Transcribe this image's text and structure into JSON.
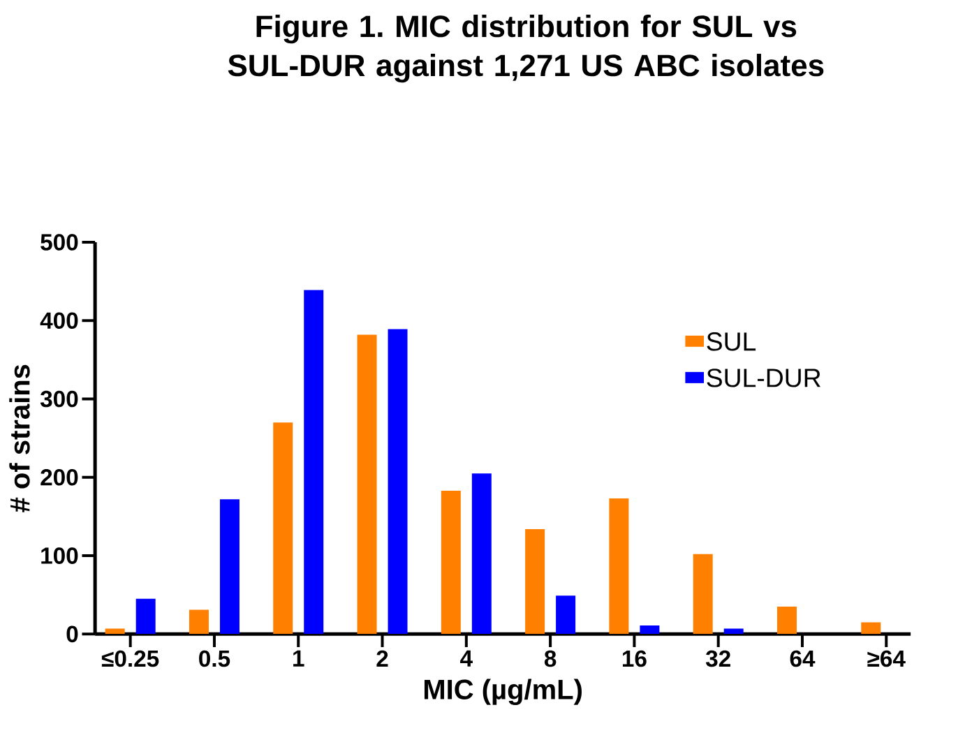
{
  "chart_data": {
    "type": "bar",
    "title": "Figure 1. MIC distribution for SUL vs SUL-DUR against 1,271 US ABC isolates",
    "xlabel": "MIC (µg/mL)",
    "ylabel": "# of strains",
    "categories": [
      "≤0.25",
      "0.5",
      "1",
      "2",
      "4",
      "8",
      "16",
      "32",
      "64",
      "≥64"
    ],
    "series": [
      {
        "name": "SUL",
        "color": "#ff8000",
        "values": [
          7,
          31,
          270,
          382,
          183,
          134,
          173,
          102,
          35,
          15
        ]
      },
      {
        "name": "SUL-DUR",
        "color": "#0000ff",
        "values": [
          45,
          172,
          439,
          389,
          205,
          49,
          11,
          7,
          null,
          null
        ]
      }
    ],
    "ylim": [
      0,
      500
    ],
    "yticks": [
      0,
      100,
      200,
      300,
      400,
      500
    ],
    "grid": false,
    "legend": "right"
  }
}
